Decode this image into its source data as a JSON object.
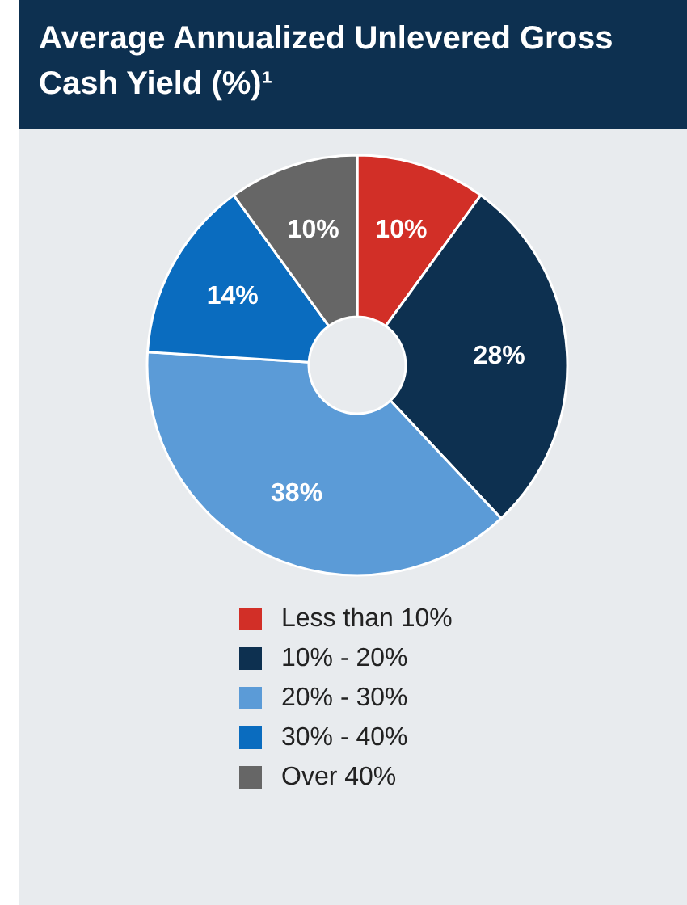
{
  "chart_data": {
    "type": "donut",
    "title": "Average Annualized Unlevered Gross Cash Yield (%)¹",
    "categories": [
      "Less than 10%",
      "10% - 20%",
      "20% - 30%",
      "30% - 40%",
      "Over 40%"
    ],
    "values": [
      10,
      28,
      38,
      14,
      10
    ],
    "colors": [
      "#d22f27",
      "#0d3050",
      "#5b9bd7",
      "#0a6cbf",
      "#666666"
    ],
    "value_labels": [
      "10%",
      "28%",
      "38%",
      "14%",
      "10%"
    ],
    "legend": "bottom"
  }
}
